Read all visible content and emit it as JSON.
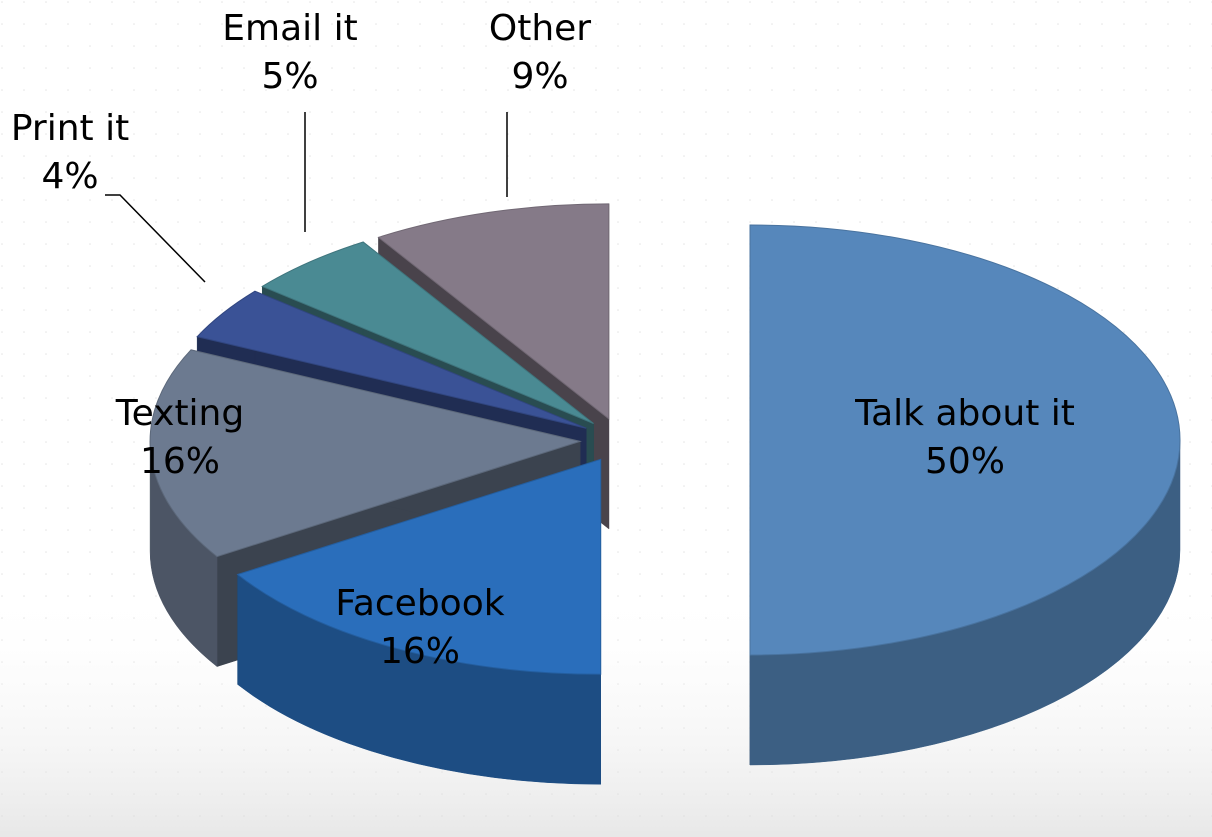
{
  "chart_data": {
    "type": "pie",
    "categories": [
      "Talk about it",
      "Facebook",
      "Texting",
      "Print it",
      "Email it",
      "Other"
    ],
    "values": [
      50,
      16,
      16,
      4,
      5,
      9
    ],
    "value_labels": [
      "50%",
      "16%",
      "16%",
      "4%",
      "5%",
      "9%"
    ],
    "colors": [
      "#5687bb",
      "#2a6ebb",
      "#6c7a90",
      "#3a5296",
      "#4a8a93",
      "#857a88"
    ]
  }
}
